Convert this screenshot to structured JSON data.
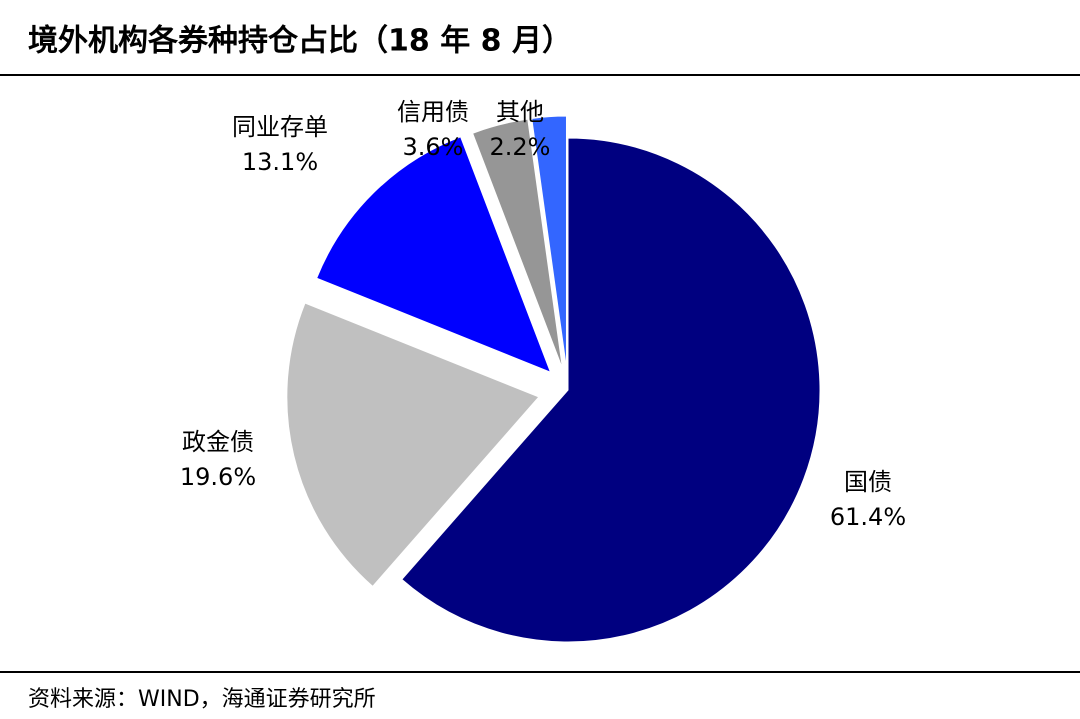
{
  "chart_data": {
    "type": "pie",
    "title": "境外机构各券种持仓占比（18 年 8 月）",
    "categories": [
      "国债",
      "政金债",
      "同业存单",
      "信用债",
      "其他"
    ],
    "values": [
      61.4,
      19.6,
      13.1,
      3.6,
      2.2
    ],
    "value_labels": [
      "61.4%",
      "19.6%",
      "13.1%",
      "3.6%",
      "2.2%"
    ],
    "colors": [
      "#000080",
      "#c0c0c0",
      "#0000ff",
      "#969696",
      "#3366ff"
    ],
    "source": "资料来源：WIND，海通证券研究所"
  }
}
